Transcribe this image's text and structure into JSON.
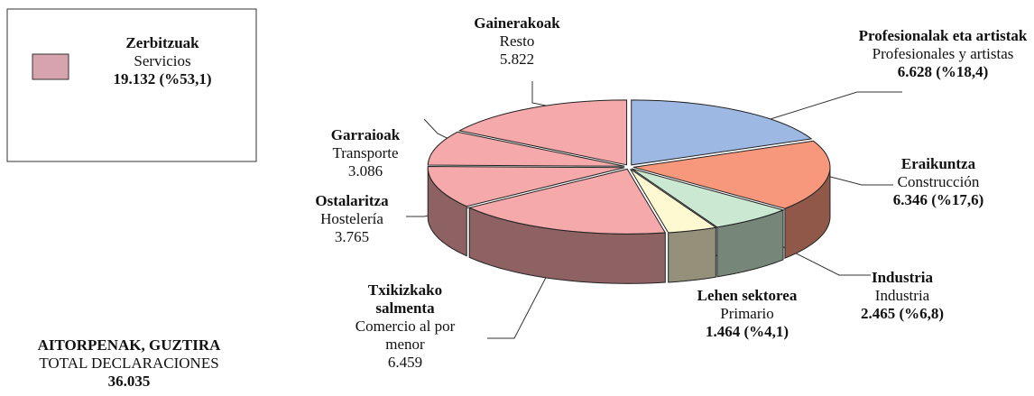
{
  "chart_data": {
    "type": "pie",
    "categories": [
      "Profesionalak eta artistak",
      "Eraikuntza",
      "Industria",
      "Lehen sektorea",
      "Txikizkako salmenta",
      "Ostalaritza",
      "Garraioak",
      "Gainerakoak"
    ],
    "categories_es": [
      "Profesionales y artistas",
      "Construcción",
      "Industria",
      "Primario",
      "Comercio al por menor",
      "Hostelería",
      "Transporte",
      "Resto"
    ],
    "values": [
      6628,
      6346,
      2465,
      1464,
      6459,
      3765,
      3086,
      5822
    ],
    "value_labels": [
      "6.628 (%18,4)",
      "6.346 (%17,6)",
      "2.465  (%6,8)",
      "1.464  (%4,1)",
      "6.459",
      "3.765",
      "3.086",
      "5.822"
    ],
    "colors": [
      "#9db8e2",
      "#f7987c",
      "#cbe8d2",
      "#fff9d2",
      "#f5a9aa",
      "#f5a9aa",
      "#f5a9aa",
      "#f5a9aa"
    ],
    "legend": {
      "name": "Zerbitzuak",
      "name_es": "Servicios",
      "value": 19132,
      "value_label": "19.132 (%53,1)",
      "color": "#d6a3ae"
    },
    "total": {
      "title": "AITORPENAK, GUZTIRA",
      "subtitle": "TOTAL DECLARACIONES",
      "value": 36035,
      "value_label": "36.035"
    }
  }
}
